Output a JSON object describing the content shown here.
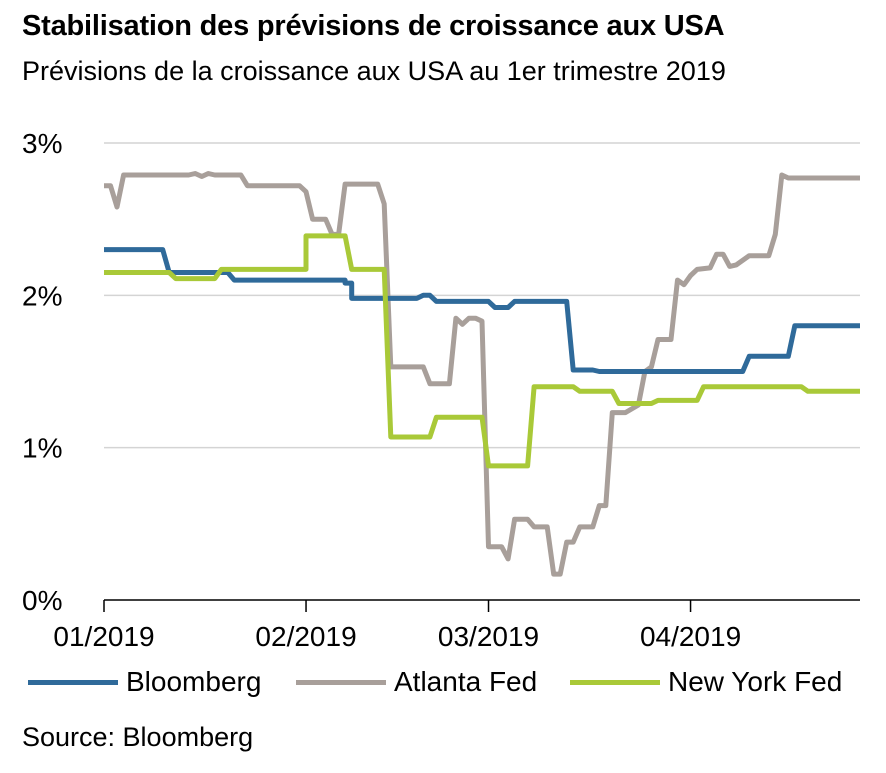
{
  "header": {
    "title": "Stabilisation des prévisions de croissance aux USA",
    "subtitle": "Prévisions de la croissance aux USA au 1er trimestre 2019"
  },
  "footer": {
    "source": "Source: Bloomberg"
  },
  "chart_data": {
    "type": "line",
    "title": "Stabilisation des prévisions de croissance aux USA",
    "subtitle": "Prévisions de la croissance aux USA au 1er trimestre 2019",
    "xlabel": "",
    "ylabel": "",
    "ylim": [
      0,
      3
    ],
    "xlim": [
      "2019-01-01",
      "2019-04-27"
    ],
    "x_ticks": [
      "2019-01-01",
      "2019-02-01",
      "2019-03-01",
      "2019-04-01"
    ],
    "x_tick_labels": [
      "01/2019",
      "02/2019",
      "03/2019",
      "04/2019"
    ],
    "y_ticks": [
      0,
      1,
      2,
      3
    ],
    "y_tick_labels": [
      "0%",
      "1%",
      "2%",
      "3%"
    ],
    "grid": "horizontal",
    "legend_position": "bottom",
    "series": [
      {
        "name": "Bloomberg",
        "color": "#2f6a9a",
        "points": [
          [
            "2019-01-01",
            2.3
          ],
          [
            "2019-01-10",
            2.3
          ],
          [
            "2019-01-11",
            2.15
          ],
          [
            "2019-01-20",
            2.15
          ],
          [
            "2019-01-21",
            2.1
          ],
          [
            "2019-02-06",
            2.1
          ],
          [
            "2019-02-07",
            2.1
          ],
          [
            "2019-02-07",
            2.1
          ],
          [
            "2019-02-07",
            2.08
          ],
          [
            "2019-02-07",
            2.08
          ],
          [
            "2019-02-08",
            2.08
          ],
          [
            "2019-02-08",
            1.98
          ],
          [
            "2019-02-18",
            1.98
          ],
          [
            "2019-02-19",
            2.0
          ],
          [
            "2019-02-20",
            2.0
          ],
          [
            "2019-02-21",
            1.96
          ],
          [
            "2019-03-01",
            1.96
          ],
          [
            "2019-03-02",
            1.92
          ],
          [
            "2019-03-04",
            1.92
          ],
          [
            "2019-03-05",
            1.96
          ],
          [
            "2019-03-13",
            1.96
          ],
          [
            "2019-03-14",
            1.51
          ],
          [
            "2019-03-17",
            1.51
          ],
          [
            "2019-03-18",
            1.5
          ],
          [
            "2019-04-09",
            1.5
          ],
          [
            "2019-04-10",
            1.6
          ],
          [
            "2019-04-16",
            1.6
          ],
          [
            "2019-04-17",
            1.8
          ],
          [
            "2019-04-27",
            1.8
          ]
        ]
      },
      {
        "name": "Atlanta Fed",
        "color": "#a89f9a",
        "points": [
          [
            "2019-01-01",
            2.72
          ],
          [
            "2019-01-02",
            2.72
          ],
          [
            "2019-01-03",
            2.58
          ],
          [
            "2019-01-04",
            2.79
          ],
          [
            "2019-01-14",
            2.79
          ],
          [
            "2019-01-15",
            2.8
          ],
          [
            "2019-01-16",
            2.78
          ],
          [
            "2019-01-17",
            2.8
          ],
          [
            "2019-01-18",
            2.79
          ],
          [
            "2019-01-22",
            2.79
          ],
          [
            "2019-01-23",
            2.72
          ],
          [
            "2019-01-31",
            2.72
          ],
          [
            "2019-02-01",
            2.68
          ],
          [
            "2019-02-02",
            2.5
          ],
          [
            "2019-02-04",
            2.5
          ],
          [
            "2019-02-05",
            2.4
          ],
          [
            "2019-02-06",
            2.4
          ],
          [
            "2019-02-07",
            2.73
          ],
          [
            "2019-02-12",
            2.73
          ],
          [
            "2019-02-13",
            2.6
          ],
          [
            "2019-02-14",
            1.53
          ],
          [
            "2019-02-19",
            1.53
          ],
          [
            "2019-02-20",
            1.42
          ],
          [
            "2019-02-23",
            1.42
          ],
          [
            "2019-02-24",
            1.85
          ],
          [
            "2019-02-25",
            1.81
          ],
          [
            "2019-02-26",
            1.85
          ],
          [
            "2019-02-27",
            1.85
          ],
          [
            "2019-02-28",
            1.83
          ],
          [
            "2019-03-01",
            0.35
          ],
          [
            "2019-03-03",
            0.35
          ],
          [
            "2019-03-04",
            0.27
          ],
          [
            "2019-03-05",
            0.53
          ],
          [
            "2019-03-07",
            0.53
          ],
          [
            "2019-03-08",
            0.48
          ],
          [
            "2019-03-10",
            0.48
          ],
          [
            "2019-03-11",
            0.17
          ],
          [
            "2019-03-12",
            0.17
          ],
          [
            "2019-03-13",
            0.38
          ],
          [
            "2019-03-14",
            0.38
          ],
          [
            "2019-03-15",
            0.48
          ],
          [
            "2019-03-17",
            0.48
          ],
          [
            "2019-03-18",
            0.62
          ],
          [
            "2019-03-19",
            0.62
          ],
          [
            "2019-03-20",
            1.23
          ],
          [
            "2019-03-22",
            1.23
          ],
          [
            "2019-03-24",
            1.28
          ],
          [
            "2019-03-25",
            1.5
          ],
          [
            "2019-03-26",
            1.53
          ],
          [
            "2019-03-27",
            1.71
          ],
          [
            "2019-03-29",
            1.71
          ],
          [
            "2019-03-30",
            2.1
          ],
          [
            "2019-03-31",
            2.07
          ],
          [
            "2019-04-01",
            2.13
          ],
          [
            "2019-04-02",
            2.17
          ],
          [
            "2019-04-04",
            2.18
          ],
          [
            "2019-04-05",
            2.27
          ],
          [
            "2019-04-06",
            2.27
          ],
          [
            "2019-04-07",
            2.19
          ],
          [
            "2019-04-08",
            2.2
          ],
          [
            "2019-04-10",
            2.26
          ],
          [
            "2019-04-13",
            2.26
          ],
          [
            "2019-04-14",
            2.4
          ],
          [
            "2019-04-15",
            2.79
          ],
          [
            "2019-04-16",
            2.77
          ],
          [
            "2019-04-27",
            2.77
          ]
        ]
      },
      {
        "name": "New York Fed",
        "color": "#a9c938",
        "points": [
          [
            "2019-01-01",
            2.15
          ],
          [
            "2019-01-11",
            2.15
          ],
          [
            "2019-01-12",
            2.11
          ],
          [
            "2019-01-18",
            2.11
          ],
          [
            "2019-01-19",
            2.17
          ],
          [
            "2019-01-31",
            2.17
          ],
          [
            "2019-02-01",
            2.17
          ],
          [
            "2019-02-01",
            2.39
          ],
          [
            "2019-02-07",
            2.39
          ],
          [
            "2019-02-08",
            2.17
          ],
          [
            "2019-02-13",
            2.17
          ],
          [
            "2019-02-14",
            1.07
          ],
          [
            "2019-02-20",
            1.07
          ],
          [
            "2019-02-21",
            1.2
          ],
          [
            "2019-02-27",
            1.2
          ],
          [
            "2019-02-28",
            1.2
          ],
          [
            "2019-03-01",
            0.88
          ],
          [
            "2019-03-07",
            0.88
          ],
          [
            "2019-03-08",
            1.4
          ],
          [
            "2019-03-14",
            1.4
          ],
          [
            "2019-03-15",
            1.37
          ],
          [
            "2019-03-20",
            1.37
          ],
          [
            "2019-03-21",
            1.29
          ],
          [
            "2019-03-26",
            1.29
          ],
          [
            "2019-03-27",
            1.31
          ],
          [
            "2019-04-02",
            1.31
          ],
          [
            "2019-04-03",
            1.4
          ],
          [
            "2019-04-18",
            1.4
          ],
          [
            "2019-04-19",
            1.37
          ],
          [
            "2019-04-27",
            1.37
          ]
        ]
      }
    ]
  }
}
